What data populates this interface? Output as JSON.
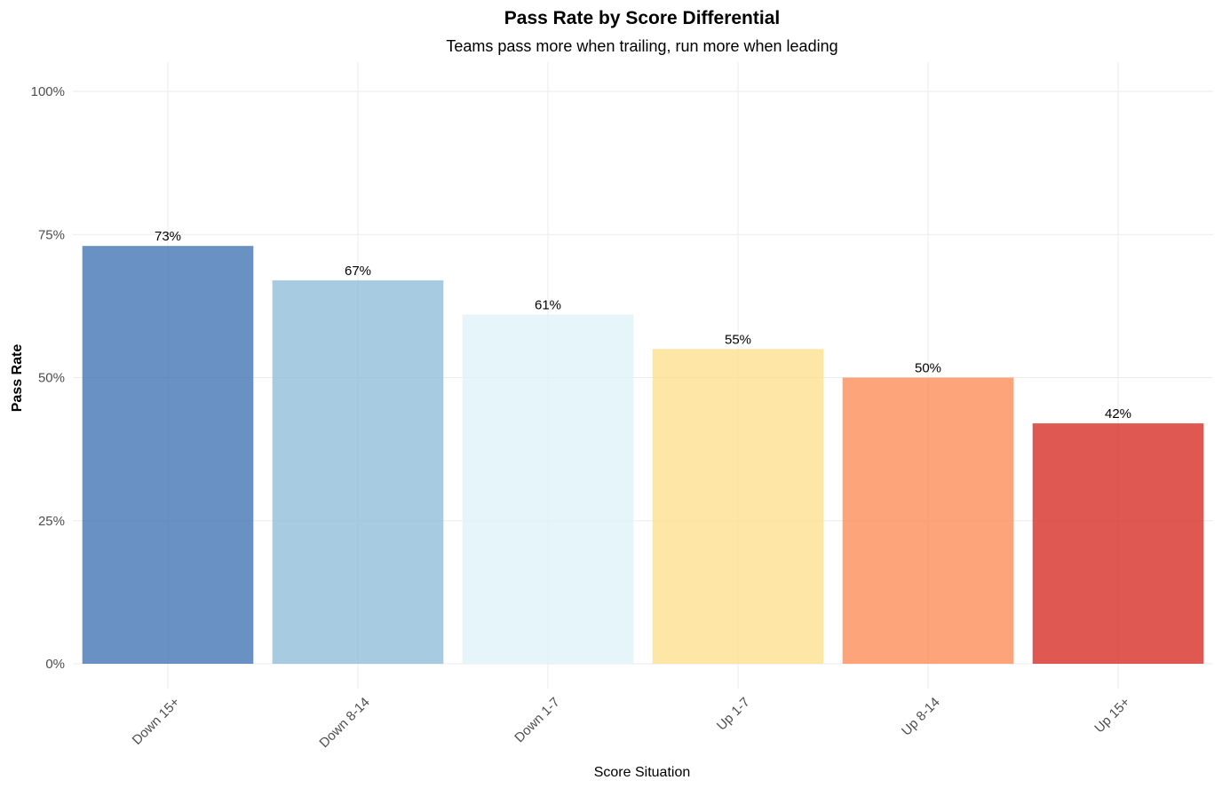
{
  "chart_data": {
    "type": "bar",
    "title": "Pass Rate by Score Differential",
    "subtitle": "Teams pass more when trailing, run more when leading",
    "xlabel": "Score Situation",
    "ylabel": "Pass Rate",
    "categories": [
      "Down 15+",
      "Down 8-14",
      "Down 1-7",
      "Up 1-7",
      "Up 8-14",
      "Up 15+"
    ],
    "values": [
      0.73,
      0.67,
      0.61,
      0.55,
      0.5,
      0.42
    ],
    "data_labels": [
      "73%",
      "67%",
      "61%",
      "55%",
      "50%",
      "42%"
    ],
    "colors": [
      "#4575b4",
      "#91bfdb",
      "#e0f3f8",
      "#fee090",
      "#fc8d59",
      "#d73027"
    ],
    "bar_opacity": 0.8,
    "ylim": [
      0,
      1
    ],
    "y_ticks": [
      0,
      0.25,
      0.5,
      0.75,
      1.0
    ],
    "y_tick_labels": [
      "0%",
      "25%",
      "50%",
      "75%",
      "100%"
    ],
    "grid": true,
    "legend": "none"
  }
}
